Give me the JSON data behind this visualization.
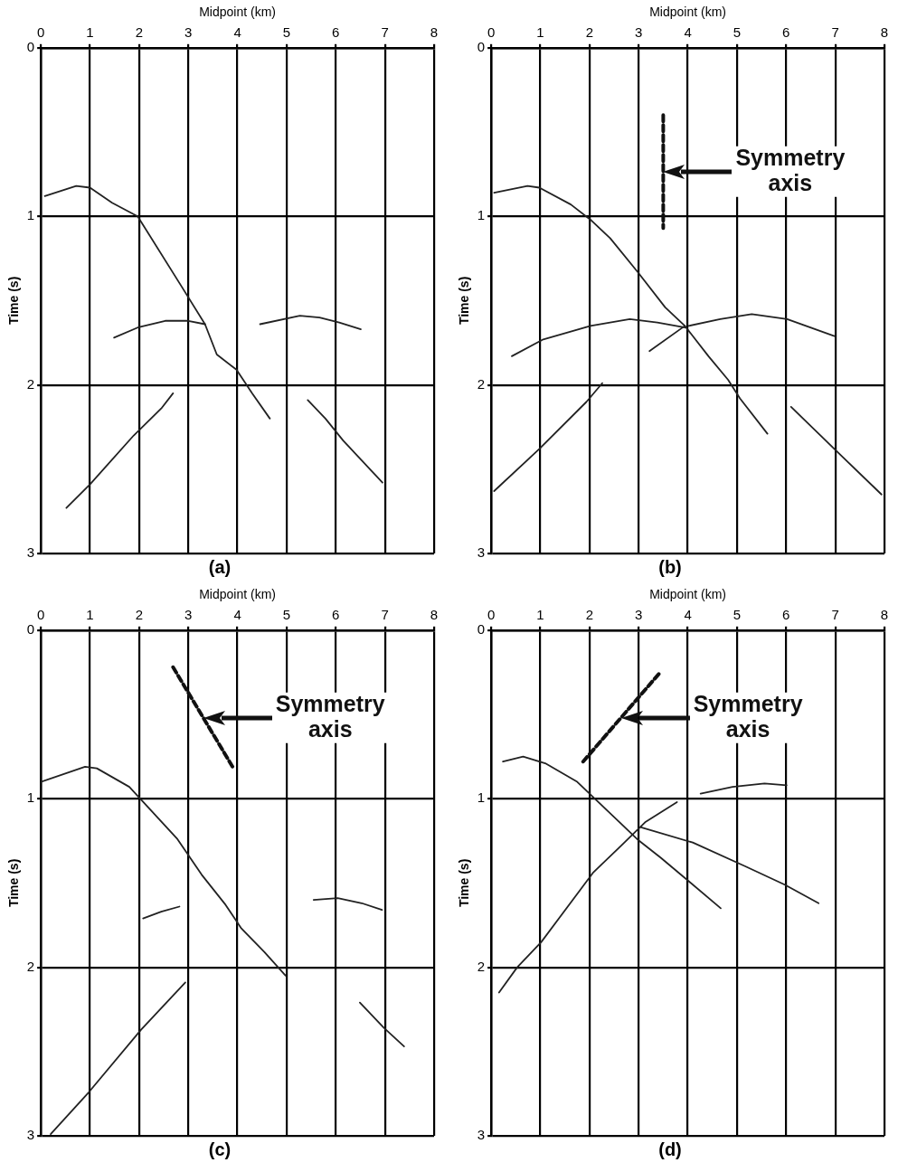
{
  "chart_data": [
    {
      "type": "line",
      "title": "(a)",
      "xlabel": "Midpoint (km)",
      "ylabel": "Time (s)",
      "xlim": [
        0,
        8
      ],
      "xticks": [
        0,
        1,
        2,
        3,
        4,
        5,
        6,
        7,
        8
      ],
      "ylim": [
        3,
        0
      ],
      "yticks": [
        0,
        1,
        2,
        3
      ],
      "grid": true,
      "legend": false,
      "marker": "none",
      "series": [
        {
          "color": "#222222",
          "x": [
            0.08,
            0.72,
            1.0,
            1.45,
            1.97,
            2.85,
            3.34,
            3.58,
            3.98,
            4.3,
            4.66
          ],
          "values": [
            0.88,
            0.82,
            0.83,
            0.92,
            1.0,
            1.41,
            1.64,
            1.82,
            1.91,
            2.05,
            2.2
          ]
        },
        {
          "color": "#222222",
          "x": [
            1.49,
            1.97,
            2.53,
            3.0,
            3.34
          ],
          "values": [
            1.72,
            1.66,
            1.62,
            1.62,
            1.64
          ]
        },
        {
          "color": "#222222",
          "x": [
            4.46,
            5.27,
            5.67,
            6.07,
            6.51
          ],
          "values": [
            1.64,
            1.59,
            1.6,
            1.63,
            1.67
          ]
        },
        {
          "color": "#222222",
          "x": [
            0.52,
            1.0,
            1.89,
            2.45,
            2.69
          ],
          "values": [
            2.73,
            2.59,
            2.3,
            2.14,
            2.05
          ]
        },
        {
          "color": "#222222",
          "x": [
            5.43,
            5.79,
            6.15,
            6.95
          ],
          "values": [
            2.09,
            2.2,
            2.33,
            2.58
          ]
        }
      ]
    },
    {
      "type": "line",
      "title": "(b)",
      "xlabel": "Midpoint (km)",
      "ylabel": "Time (s)",
      "xlim": [
        0,
        8
      ],
      "xticks": [
        0,
        1,
        2,
        3,
        4,
        5,
        6,
        7,
        8
      ],
      "ylim": [
        3,
        0
      ],
      "yticks": [
        0,
        1,
        2,
        3
      ],
      "grid": true,
      "legend": false,
      "marker": "none",
      "annotations": [
        "Symmetry axis"
      ],
      "series": [
        {
          "color": "#222222",
          "x": [
            0.06,
            0.74,
            0.98,
            1.62,
            2.02,
            2.42,
            2.98,
            3.54,
            3.94,
            4.42,
            4.82,
            5.06,
            5.62
          ],
          "values": [
            0.86,
            0.82,
            0.83,
            0.93,
            1.02,
            1.13,
            1.33,
            1.54,
            1.65,
            1.83,
            1.97,
            2.08,
            2.29
          ]
        },
        {
          "color": "#222222",
          "x": [
            0.42,
            1.06,
            2.02,
            2.82,
            3.38,
            3.94
          ],
          "values": [
            1.83,
            1.73,
            1.65,
            1.61,
            1.63,
            1.66
          ]
        },
        {
          "color": "#222222",
          "x": [
            4.02,
            4.66,
            5.3,
            6.02,
            6.98
          ],
          "values": [
            1.65,
            1.61,
            1.58,
            1.61,
            1.71
          ]
        },
        {
          "color": "#222222",
          "x": [
            3.22,
            3.94
          ],
          "values": [
            1.8,
            1.65
          ]
        },
        {
          "color": "#222222",
          "x": [
            0.06,
            0.98,
            1.94,
            2.26
          ],
          "values": [
            2.63,
            2.38,
            2.1,
            1.99
          ]
        },
        {
          "color": "#222222",
          "x": [
            6.1,
            6.98,
            7.94
          ],
          "values": [
            2.13,
            2.38,
            2.65
          ]
        },
        {
          "color": "#111111",
          "line_style": "dashed",
          "x": [
            3.5,
            3.5
          ],
          "values": [
            0.4,
            1.07
          ]
        }
      ]
    },
    {
      "type": "line",
      "title": "(c)",
      "xlabel": "Midpoint (km)",
      "ylabel": "Time (s)",
      "xlim": [
        0,
        8
      ],
      "xticks": [
        0,
        1,
        2,
        3,
        4,
        5,
        6,
        7,
        8
      ],
      "ylim": [
        3,
        0
      ],
      "yticks": [
        0,
        1,
        2,
        3
      ],
      "grid": true,
      "legend": false,
      "marker": "none",
      "annotations": [
        "Symmetry axis"
      ],
      "series": [
        {
          "color": "#222222",
          "x": [
            0.0,
            0.9,
            1.14,
            1.8,
            2.78,
            3.27,
            3.76,
            4.08,
            4.55,
            4.98
          ],
          "values": [
            0.9,
            0.81,
            0.82,
            0.93,
            1.24,
            1.45,
            1.63,
            1.77,
            1.91,
            2.05
          ]
        },
        {
          "color": "#222222",
          "x": [
            2.08,
            2.45,
            2.82
          ],
          "values": [
            1.71,
            1.67,
            1.64
          ]
        },
        {
          "color": "#222222",
          "x": [
            5.55,
            6.04,
            6.53,
            6.94
          ],
          "values": [
            1.6,
            1.59,
            1.62,
            1.66
          ]
        },
        {
          "color": "#222222",
          "x": [
            0.2,
            0.98,
            2.04,
            2.94
          ],
          "values": [
            2.99,
            2.74,
            2.37,
            2.09
          ]
        },
        {
          "color": "#222222",
          "x": [
            6.49,
            6.98,
            7.39
          ],
          "values": [
            2.21,
            2.36,
            2.47
          ]
        },
        {
          "color": "#111111",
          "line_style": "dashed",
          "x": [
            2.69,
            3.92
          ],
          "values": [
            0.22,
            0.82
          ]
        }
      ]
    },
    {
      "type": "line",
      "title": "(d)",
      "xlabel": "Midpoint (km)",
      "ylabel": "Time (s)",
      "xlim": [
        0,
        8
      ],
      "xticks": [
        0,
        1,
        2,
        3,
        4,
        5,
        6,
        7,
        8
      ],
      "ylim": [
        3,
        0
      ],
      "yticks": [
        0,
        1,
        2,
        3
      ],
      "grid": true,
      "legend": false,
      "marker": "none",
      "annotations": [
        "Symmetry axis"
      ],
      "series": [
        {
          "color": "#222222",
          "x": [
            0.24,
            0.65,
            1.1,
            1.75,
            2.72,
            2.97,
            3.45,
            4.02,
            4.67
          ],
          "values": [
            0.78,
            0.75,
            0.79,
            0.9,
            1.17,
            1.24,
            1.35,
            1.49,
            1.65
          ]
        },
        {
          "color": "#222222",
          "x": [
            4.26,
            4.91,
            5.56,
            6.01
          ],
          "values": [
            0.97,
            0.93,
            0.91,
            0.92
          ]
        },
        {
          "color": "#222222",
          "x": [
            3.05,
            4.1,
            5.16,
            5.97,
            6.66
          ],
          "values": [
            1.17,
            1.26,
            1.4,
            1.51,
            1.62
          ]
        },
        {
          "color": "#222222",
          "x": [
            0.16,
            0.53,
            1.02,
            2.07,
            2.64,
            3.13,
            3.78
          ],
          "values": [
            2.15,
            2.0,
            1.85,
            1.44,
            1.28,
            1.14,
            1.02
          ]
        },
        {
          "color": "#111111",
          "line_style": "dashed",
          "x": [
            1.87,
            3.41
          ],
          "values": [
            0.78,
            0.26
          ]
        }
      ]
    }
  ]
}
